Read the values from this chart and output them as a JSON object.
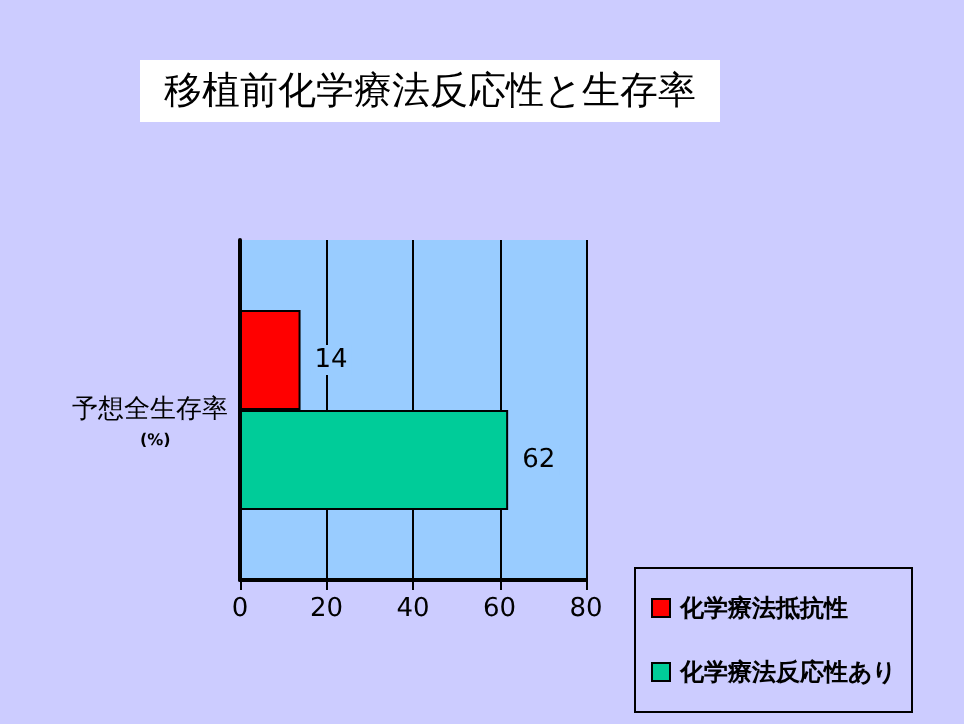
{
  "chart_data": {
    "type": "bar",
    "orientation": "horizontal",
    "title": "移植前化学療法反応性と生存率",
    "categories": [
      "予想全生存率"
    ],
    "series": [
      {
        "name": "化学療法抵抗性",
        "color": "#ff0000",
        "values": [
          14
        ]
      },
      {
        "name": "化学療法反応性あり",
        "color": "#00cc99",
        "values": [
          62
        ]
      }
    ],
    "annotations": [
      "(%)"
    ],
    "xlim": [
      0,
      80
    ],
    "xticks": [
      0,
      20,
      40,
      60,
      80
    ],
    "grid": "x",
    "legend": "bottom right",
    "data_labels": true
  }
}
